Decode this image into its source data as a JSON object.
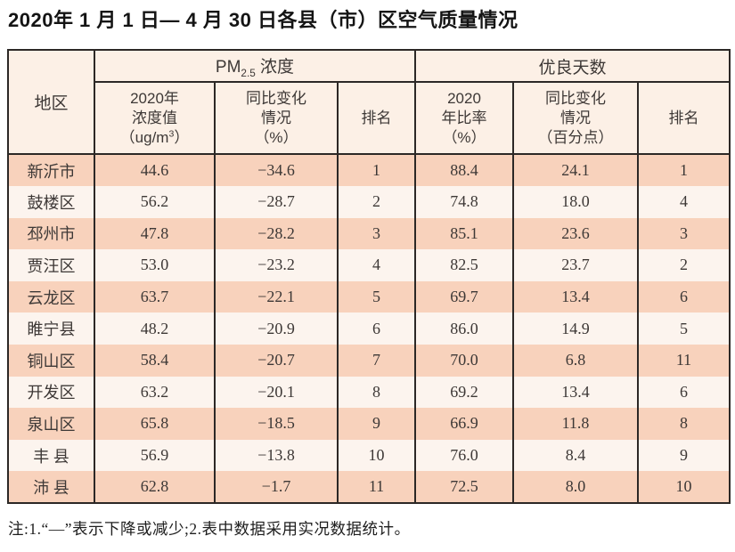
{
  "title": "2020年 1 月 1 日— 4 月 30 日各县（市）区空气质量情况",
  "note": "注:1.“—”表示下降或减少;2.表中数据采用实况数据统计。",
  "colors": {
    "border": "#2c2826",
    "header_bg": "#fcf0e6",
    "row_odd": "#f8d2bc",
    "row_even": "#fcf4ee",
    "text": "#3d3836"
  },
  "table": {
    "header": {
      "region": "地区",
      "pm25_group": {
        "prefix": "PM",
        "sub": "2.5",
        "suffix": " 浓度"
      },
      "good_days_group": "优良天数",
      "rank": "排名",
      "pm_value": {
        "l1": "2020年",
        "l2": "浓度值",
        "l3a": "（ug/m",
        "l3sup": "3",
        "l3b": "）"
      },
      "pm_change": {
        "l1": "同比变化",
        "l2": "情况",
        "l3": "（%）"
      },
      "good_rate": {
        "l1": "2020",
        "l2": "年比率",
        "l3": "（%）"
      },
      "good_change": {
        "l1": "同比变化",
        "l2": "情况",
        "l3": "（百分点）"
      }
    },
    "rows": [
      {
        "region": "新沂市",
        "pm_value": "44.6",
        "pm_change": "−34.6",
        "pm_rank": "1",
        "good_rate": "88.4",
        "good_change": "24.1",
        "good_rank": "1"
      },
      {
        "region": "鼓楼区",
        "pm_value": "56.2",
        "pm_change": "−28.7",
        "pm_rank": "2",
        "good_rate": "74.8",
        "good_change": "18.0",
        "good_rank": "4"
      },
      {
        "region": "邳州市",
        "pm_value": "47.8",
        "pm_change": "−28.2",
        "pm_rank": "3",
        "good_rate": "85.1",
        "good_change": "23.6",
        "good_rank": "3"
      },
      {
        "region": "贾汪区",
        "pm_value": "53.0",
        "pm_change": "−23.2",
        "pm_rank": "4",
        "good_rate": "82.5",
        "good_change": "23.7",
        "good_rank": "2"
      },
      {
        "region": "云龙区",
        "pm_value": "63.7",
        "pm_change": "−22.1",
        "pm_rank": "5",
        "good_rate": "69.7",
        "good_change": "13.4",
        "good_rank": "6"
      },
      {
        "region": "睢宁县",
        "pm_value": "48.2",
        "pm_change": "−20.9",
        "pm_rank": "6",
        "good_rate": "86.0",
        "good_change": "14.9",
        "good_rank": "5"
      },
      {
        "region": "铜山区",
        "pm_value": "58.4",
        "pm_change": "−20.7",
        "pm_rank": "7",
        "good_rate": "70.0",
        "good_change": "6.8",
        "good_rank": "11"
      },
      {
        "region": "开发区",
        "pm_value": "63.2",
        "pm_change": "−20.1",
        "pm_rank": "8",
        "good_rate": "69.2",
        "good_change": "13.4",
        "good_rank": "6"
      },
      {
        "region": "泉山区",
        "pm_value": "65.8",
        "pm_change": "−18.5",
        "pm_rank": "9",
        "good_rate": "66.9",
        "good_change": "11.8",
        "good_rank": "8"
      },
      {
        "region": "丰 县",
        "pm_value": "56.9",
        "pm_change": "−13.8",
        "pm_rank": "10",
        "good_rate": "76.0",
        "good_change": "8.4",
        "good_rank": "9"
      },
      {
        "region": "沛 县",
        "pm_value": "62.8",
        "pm_change": "−1.7",
        "pm_rank": "11",
        "good_rate": "72.5",
        "good_change": "8.0",
        "good_rank": "10"
      }
    ]
  }
}
